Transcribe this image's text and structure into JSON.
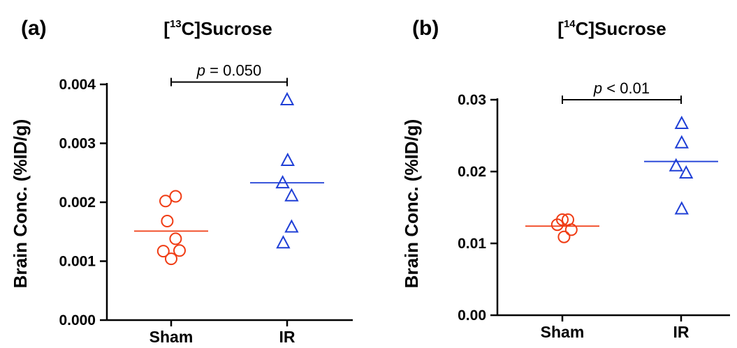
{
  "chart_data": [
    {
      "type": "scatter",
      "panel_label": "(a)",
      "title_prefix": "[",
      "title_sup": "13",
      "title_suffix": "C]Sucrose",
      "ylabel": "Brain Conc. (%ID/g)",
      "xlabel": "",
      "categories": [
        "Sham",
        "IR"
      ],
      "ylim": [
        0.0,
        0.004
      ],
      "yticks": [
        0.0,
        0.001,
        0.002,
        0.003,
        0.004
      ],
      "ytick_labels": [
        "0.000",
        "0.001",
        "0.002",
        "0.003",
        "0.004"
      ],
      "series": [
        {
          "category": "Sham",
          "marker": "circle",
          "color": "#f03c14",
          "points": [
            [
              -0.1,
              0.00202
            ],
            [
              0.08,
              0.0021
            ],
            [
              -0.07,
              0.00168
            ],
            [
              0.08,
              0.00138
            ],
            [
              -0.14,
              0.00117
            ],
            [
              0.15,
              0.00118
            ],
            [
              0.0,
              0.00104
            ]
          ],
          "mean": 0.00151
        },
        {
          "category": "IR",
          "marker": "triangle",
          "color": "#1f3fd6",
          "points": [
            [
              0.0,
              0.00374
            ],
            [
              0.01,
              0.00271
            ],
            [
              -0.08,
              0.00233
            ],
            [
              0.08,
              0.00211
            ],
            [
              0.08,
              0.00158
            ],
            [
              -0.07,
              0.00131
            ]
          ],
          "mean": 0.00233
        }
      ],
      "annotation": {
        "p_italic": "p",
        "p_rest": " = 0.050",
        "y": 0.00404
      }
    },
    {
      "type": "scatter",
      "panel_label": "(b)",
      "title_prefix": "[",
      "title_sup": "14",
      "title_suffix": "C]Sucrose",
      "ylabel": "Brain Conc. (%ID/g)",
      "xlabel": "",
      "categories": [
        "Sham",
        "IR"
      ],
      "ylim": [
        0.0,
        0.03
      ],
      "yticks": [
        0.0,
        0.01,
        0.02,
        0.03
      ],
      "ytick_labels": [
        "0.00",
        "0.01",
        "0.02",
        "0.03"
      ],
      "series": [
        {
          "category": "Sham",
          "marker": "circle",
          "color": "#f03c14",
          "points": [
            [
              -0.09,
              0.0126
            ],
            [
              0.0,
              0.0133
            ],
            [
              0.1,
              0.0133
            ],
            [
              0.16,
              0.0119
            ],
            [
              0.03,
              0.0109
            ]
          ],
          "mean": 0.0124
        },
        {
          "category": "IR",
          "marker": "triangle",
          "color": "#1f3fd6",
          "points": [
            [
              0.01,
              0.0267
            ],
            [
              0.01,
              0.024
            ],
            [
              -0.09,
              0.0208
            ],
            [
              0.09,
              0.0198
            ],
            [
              0.01,
              0.0148
            ]
          ],
          "mean": 0.0214
        }
      ],
      "annotation": {
        "p_italic": "p",
        "p_rest": " < 0.01",
        "y": 0.03
      }
    }
  ]
}
